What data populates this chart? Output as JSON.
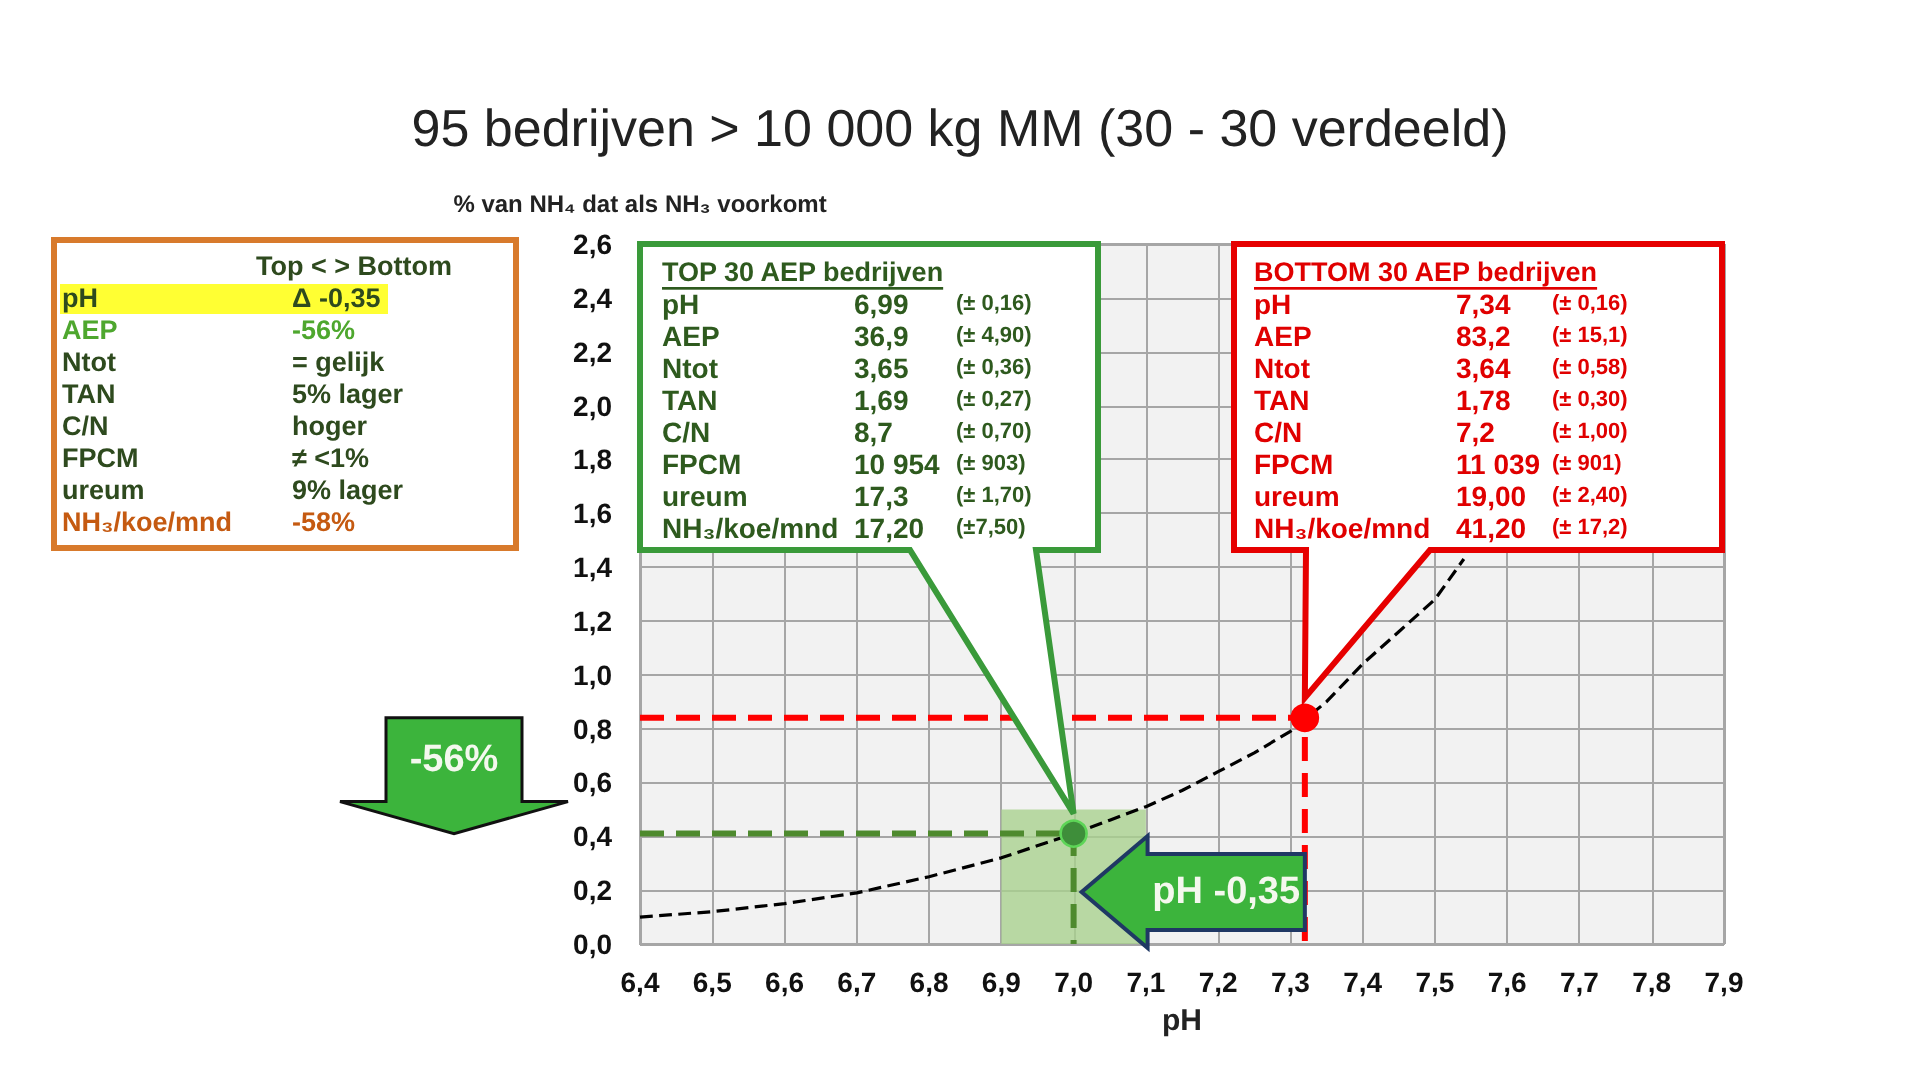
{
  "chart_data": {
    "type": "line",
    "title": "95 bedrijven > 10 000 kg MM (30 - 30 verdeeld)",
    "xlabel": "pH",
    "ylabel": "% van NH₄ dat als NH₃ voorkomt",
    "xlim": [
      6.4,
      7.9
    ],
    "xticks": [
      {
        "value": 6.4,
        "label": "6,4"
      },
      {
        "value": 6.5,
        "label": "6,5"
      },
      {
        "value": 6.6,
        "label": "6,6"
      },
      {
        "value": 6.7,
        "label": "6,7"
      },
      {
        "value": 6.8,
        "label": "6,8"
      },
      {
        "value": 6.9,
        "label": "6,9"
      },
      {
        "value": 7,
        "label": "7,0"
      },
      {
        "value": 7.1,
        "label": "7,1"
      },
      {
        "value": 7.2,
        "label": "7,2"
      },
      {
        "value": 7.3,
        "label": "7,3"
      },
      {
        "value": 7.4,
        "label": "7,4"
      },
      {
        "value": 7.5,
        "label": "7,5"
      },
      {
        "value": 7.6,
        "label": "7,6"
      },
      {
        "value": 7.7,
        "label": "7,7"
      },
      {
        "value": 7.8,
        "label": "7,8"
      },
      {
        "value": 7.9,
        "label": "7,9"
      }
    ],
    "ylim": [
      0,
      2.6
    ],
    "yticks": [
      {
        "value": 0,
        "label": "0,0"
      },
      {
        "value": 0.2,
        "label": "0,2"
      },
      {
        "value": 0.4,
        "label": "0,4"
      },
      {
        "value": 0.6,
        "label": "0,6"
      },
      {
        "value": 0.8,
        "label": "0,8"
      },
      {
        "value": 1,
        "label": "1,0"
      },
      {
        "value": 1.2,
        "label": "1,2"
      },
      {
        "value": 1.4,
        "label": "1,4"
      },
      {
        "value": 1.6,
        "label": "1,6"
      },
      {
        "value": 1.8,
        "label": "1,8"
      },
      {
        "value": 2,
        "label": "2,0"
      },
      {
        "value": 2.2,
        "label": "2,2"
      },
      {
        "value": 2.4,
        "label": "2,4"
      },
      {
        "value": 2.6,
        "label": "2,6"
      }
    ],
    "grid": true,
    "series": [
      {
        "type": "area",
        "color": "#a9d18e",
        "x": [
          6.9,
          7.1
        ],
        "values": [
          0.5,
          0.5
        ]
      },
      {
        "type": "line",
        "color": "#000000",
        "line_style": "dashed",
        "marker": "none",
        "x": [
          6.4,
          6.5,
          6.6,
          6.7,
          6.8,
          6.9,
          7.0,
          7.05,
          7.1,
          7.15,
          7.2,
          7.25,
          7.3,
          7.35,
          7.4,
          7.45,
          7.5,
          7.54
        ],
        "values": [
          0.1,
          0.12,
          0.15,
          0.19,
          0.25,
          0.32,
          0.41,
          0.46,
          0.51,
          0.57,
          0.64,
          0.71,
          0.79,
          0.9,
          1.04,
          1.16,
          1.28,
          1.43
        ]
      },
      {
        "type": "line",
        "color": "#4e8a2e",
        "line_style": "dashed",
        "marker": "none",
        "x": [
          6.4,
          7.0,
          7.0
        ],
        "values": [
          0.41,
          0.41,
          0
        ]
      },
      {
        "type": "line",
        "color": "#ff0000",
        "line_style": "dashed",
        "marker": "none",
        "x": [
          6.4,
          7.32,
          7.32
        ],
        "values": [
          0.84,
          0.84,
          0
        ]
      },
      {
        "type": "scatter",
        "color": "#3e8e3a",
        "marker": "circle",
        "x": [
          7.0
        ],
        "values": [
          0.41
        ]
      },
      {
        "type": "scatter",
        "color": "#ff0000",
        "marker": "circle",
        "x": [
          7.32
        ],
        "values": [
          0.84
        ]
      }
    ],
    "annotations": [
      "Top  < > Bottom\npH\tΔ -0,35\nAEP\t-56%\nNtot\t= gelijk\nTAN\t5%  lager\nC/N\thoger\nFPCM\t≠ <1%\nureum\t9%  lager\nNH₃/koe/mnd\t-58%",
      "TOP 30 AEP bedrijven\npH\t6,99\t(± 0,16)\nAEP\t36,9\t(± 4,90)\nNtot\t3,65\t(± 0,36)\nTAN\t1,69\t(± 0,27)\nC/N\t8,7\t(± 0,70)\nFPCM\t10 954\t(± 903)\nureum\t17,3\t(± 1,70)\nNH₃/koe/mnd\t17,20\t(±7,50)",
      "BOTTOM 30 AEP bedrijven\npH\t7,34\t(± 0,16)\nAEP\t83,2\t(± 15,1)\nNtot\t3,64\t(± 0,58)\nTAN\t1,78\t(± 0,30)\nC/N\t7,2\t(± 1,00)\nFPCM\t11 039\t(± 901)\nureum\t19,00\t(± 2,40)\nNH₃/koe/mnd\t41,20\t(± 17,2)",
      "-56%",
      "pH -0,35"
    ]
  }
}
